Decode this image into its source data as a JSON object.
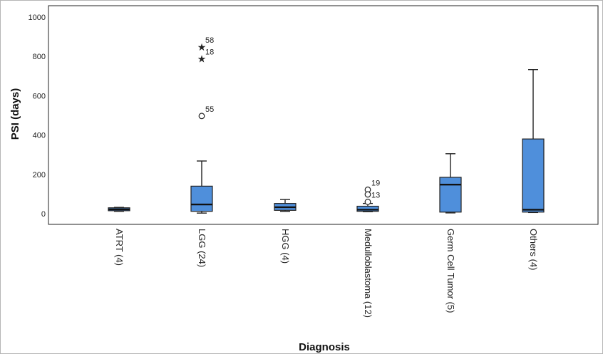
{
  "chart_data": {
    "type": "boxplot",
    "xlabel": "Diagnosis",
    "ylabel": "PSI (days)",
    "ylim": [
      -50,
      1050
    ],
    "yticks": [
      0,
      200,
      400,
      600,
      800,
      1000
    ],
    "grid": false,
    "box_color": "#4f8fdb",
    "categories": [
      {
        "label": "ATRT (4)",
        "whisker_low": 12,
        "q1": 15,
        "median": 22,
        "q3": 30,
        "whisker_high": 32,
        "outliers": []
      },
      {
        "label": "LGG (24)",
        "whisker_low": 3,
        "q1": 12,
        "median": 47,
        "q3": 140,
        "whisker_high": 268,
        "outliers": [
          {
            "value": 848,
            "marker": "star",
            "label": "58"
          },
          {
            "value": 788,
            "marker": "star",
            "label": "18"
          },
          {
            "value": 497,
            "marker": "circle",
            "label": "55"
          }
        ]
      },
      {
        "label": "HGG (4)",
        "whisker_low": 12,
        "q1": 17,
        "median": 33,
        "q3": 52,
        "whisker_high": 72,
        "outliers": []
      },
      {
        "label": "Medulloblastoma (12)",
        "whisker_low": 10,
        "q1": 12,
        "median": 20,
        "q3": 38,
        "whisker_high": 52,
        "outliers": [
          {
            "value": 122,
            "marker": "circle",
            "label": "19"
          },
          {
            "value": 98,
            "marker": "circle",
            "label": ""
          },
          {
            "value": 60,
            "marker": "circle",
            "label": "13"
          }
        ]
      },
      {
        "label": "Germ Cell Tumor (5)",
        "whisker_low": 4,
        "q1": 8,
        "median": 148,
        "q3": 185,
        "whisker_high": 305,
        "outliers": []
      },
      {
        "label": "Others (4)",
        "whisker_low": 6,
        "q1": 8,
        "median": 20,
        "q3": 380,
        "whisker_high": 733,
        "outliers": []
      }
    ]
  }
}
